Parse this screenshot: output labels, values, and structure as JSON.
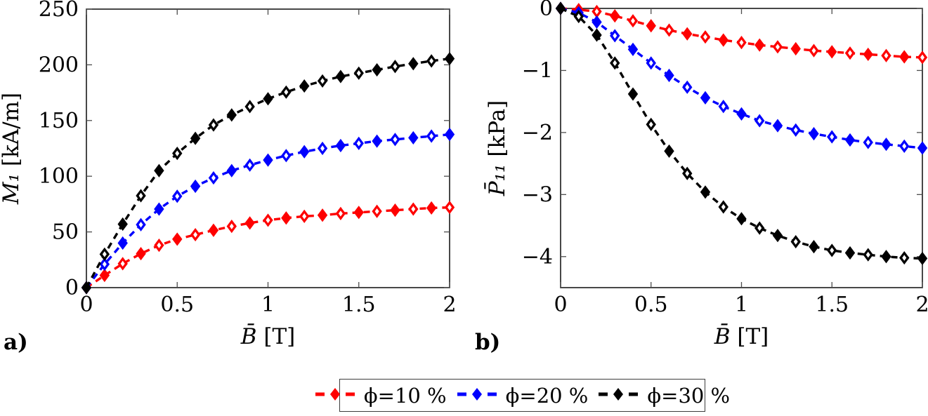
{
  "panels": [
    {
      "tag": "a)"
    },
    {
      "tag": "b)"
    }
  ],
  "legend": {
    "entries": [
      {
        "label": "ϕ=10 %",
        "color": "#fe0000"
      },
      {
        "label": "ϕ=20 %",
        "color": "#0000fe"
      },
      {
        "label": "ϕ=30 %",
        "color": "#000000"
      }
    ]
  },
  "chart_data": [
    {
      "id": "a",
      "type": "line",
      "title": "",
      "xlabel": "B̄ [T]",
      "xlabel_var": "B̄",
      "xlabel_unit": "[T]",
      "ylabel": "M̄₁ [kA/m]",
      "ylabel_var": "M̄₁",
      "ylabel_unit": "[kA/m]",
      "xlim": [
        0,
        2
      ],
      "ylim": [
        0,
        250
      ],
      "grid": false,
      "xticks": [
        0,
        0.5,
        1,
        1.5,
        2
      ],
      "xtick_labels": [
        "0",
        "0.5",
        "1",
        "1.5",
        "2"
      ],
      "yticks": [
        0,
        50,
        100,
        150,
        200,
        250
      ],
      "ytick_labels": [
        "0",
        "50",
        "100",
        "150",
        "200",
        "250"
      ],
      "x": [
        0,
        0.1,
        0.2,
        0.3,
        0.4,
        0.5,
        0.6,
        0.7,
        0.8,
        0.9,
        1,
        1.1,
        1.2,
        1.3,
        1.4,
        1.5,
        1.6,
        1.7,
        1.8,
        1.9,
        2
      ],
      "series": [
        {
          "name": "ϕ=10 %",
          "color": "#fe0000",
          "values": [
            0,
            11,
            21.5,
            30.5,
            38,
            43.5,
            47.5,
            51.5,
            55,
            58,
            60.5,
            62.5,
            64,
            65,
            66.5,
            67.5,
            68.5,
            69.5,
            70.5,
            71.5,
            72
          ]
        },
        {
          "name": "ϕ=20 %",
          "color": "#0000fe",
          "values": [
            0,
            21,
            40,
            56.5,
            70.5,
            82,
            91,
            98.5,
            105,
            110,
            114.5,
            118.5,
            122,
            125,
            127.5,
            129.5,
            131.5,
            133,
            134.5,
            136,
            137.5
          ]
        },
        {
          "name": "ϕ=30 %",
          "color": "#000000",
          "values": [
            0,
            30,
            57,
            82.5,
            105,
            120.5,
            134,
            146,
            155,
            162.5,
            169.5,
            175.5,
            181,
            185.5,
            189.5,
            192.5,
            195.5,
            198.5,
            201,
            203.5,
            205.5
          ]
        }
      ]
    },
    {
      "id": "b",
      "type": "line",
      "title": "",
      "xlabel": "B̄ [T]",
      "xlabel_var": "B̄",
      "xlabel_unit": "[T]",
      "ylabel": "P̄₁₁ [kPa]",
      "ylabel_var": "P̄₁₁",
      "ylabel_unit": "[kPa]",
      "xlim": [
        0,
        2
      ],
      "ylim": [
        -4.5,
        0
      ],
      "grid": false,
      "xticks": [
        0,
        0.5,
        1,
        1.5,
        2
      ],
      "xtick_labels": [
        "0",
        "0.5",
        "1",
        "1.5",
        "2"
      ],
      "yticks": [
        0,
        -1,
        -2,
        -3,
        -4
      ],
      "ytick_labels": [
        "0",
        "−1",
        "−2",
        "−3",
        "−4"
      ],
      "x": [
        0,
        0.1,
        0.2,
        0.3,
        0.4,
        0.5,
        0.6,
        0.7,
        0.8,
        0.9,
        1,
        1.1,
        1.2,
        1.3,
        1.4,
        1.5,
        1.6,
        1.7,
        1.8,
        1.9,
        2
      ],
      "series": [
        {
          "name": "ϕ=10 %",
          "color": "#fe0000",
          "values": [
            0,
            -0.02,
            -0.05,
            -0.12,
            -0.2,
            -0.28,
            -0.35,
            -0.41,
            -0.46,
            -0.51,
            -0.55,
            -0.59,
            -0.62,
            -0.65,
            -0.68,
            -0.7,
            -0.72,
            -0.74,
            -0.76,
            -0.78,
            -0.79
          ]
        },
        {
          "name": "ϕ=20 %",
          "color": "#0000fe",
          "values": [
            0,
            -0.07,
            -0.22,
            -0.44,
            -0.66,
            -0.88,
            -1.08,
            -1.27,
            -1.44,
            -1.58,
            -1.7,
            -1.81,
            -1.89,
            -1.96,
            -2.02,
            -2.07,
            -2.12,
            -2.16,
            -2.19,
            -2.22,
            -2.25
          ]
        },
        {
          "name": "ϕ=30 %",
          "color": "#000000",
          "values": [
            0,
            -0.13,
            -0.43,
            -0.88,
            -1.38,
            -1.87,
            -2.3,
            -2.66,
            -2.96,
            -3.2,
            -3.39,
            -3.54,
            -3.66,
            -3.76,
            -3.84,
            -3.9,
            -3.94,
            -3.97,
            -4,
            -4.02,
            -4.03
          ]
        }
      ]
    }
  ]
}
